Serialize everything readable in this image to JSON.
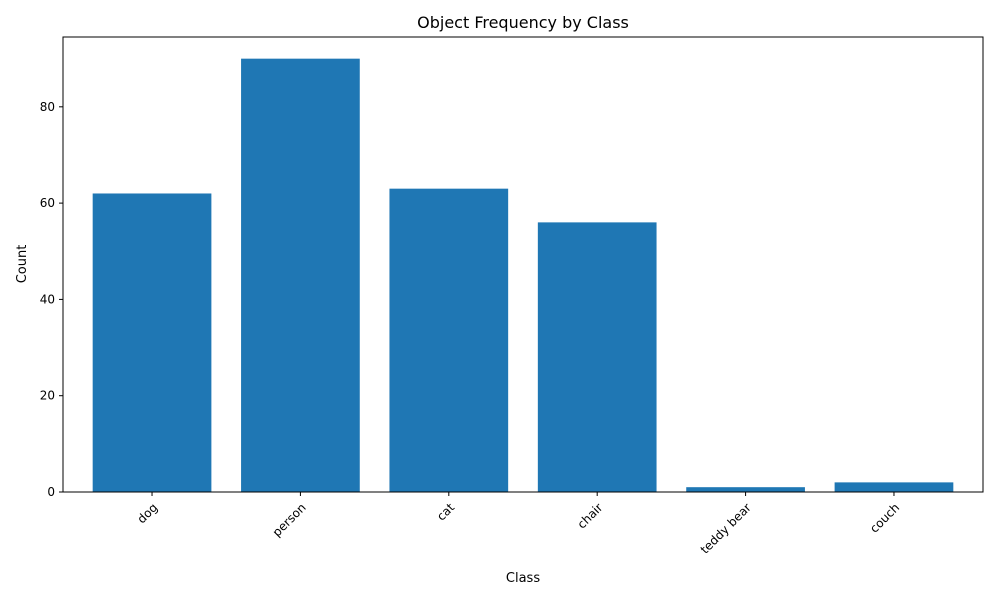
{
  "chart_data": {
    "type": "bar",
    "title": "Object Frequency by Class",
    "xlabel": "Class",
    "ylabel": "Count",
    "categories": [
      "dog",
      "person",
      "cat",
      "chair",
      "teddy bear",
      "couch"
    ],
    "values": [
      62,
      90,
      63,
      56,
      1,
      2
    ],
    "ylim": [
      0,
      94.5
    ],
    "yticks": [
      0,
      20,
      40,
      60,
      80
    ],
    "x_tick_rotation": 45,
    "grid": false,
    "bar_color": "#1f77b4"
  }
}
